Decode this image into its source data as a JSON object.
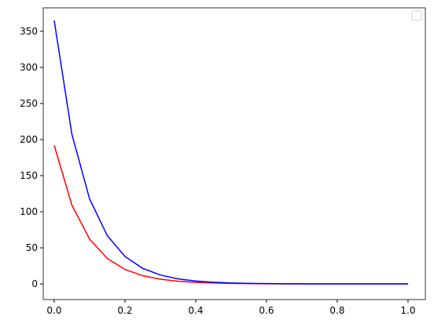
{
  "chart_data": {
    "type": "line",
    "x": [
      0,
      0.05,
      0.1,
      0.15,
      0.2,
      0.25,
      0.3,
      0.35,
      0.4,
      0.45,
      0.5,
      0.55,
      0.6,
      0.65,
      0.7,
      0.75,
      0.8,
      0.85,
      0.9,
      0.95,
      1.0
    ],
    "series": [
      {
        "color": "#ff0000",
        "values": [
          192,
          109.1,
          62.0,
          35.2,
          20.0,
          11.4,
          6.5,
          3.7,
          2.1,
          1.2,
          0.7,
          0.4,
          0.2,
          0.1,
          0.1,
          0.0,
          0.0,
          0.0,
          0.0,
          0.0,
          0.0
        ]
      },
      {
        "color": "#0000ff",
        "values": [
          365,
          207.3,
          117.8,
          66.9,
          38.0,
          21.6,
          12.3,
          7.0,
          4.0,
          2.3,
          1.3,
          0.7,
          0.4,
          0.2,
          0.1,
          0.1,
          0.0,
          0.0,
          0.0,
          0.0,
          0.0
        ]
      }
    ],
    "xlim": [
      -0.031,
      1.049
    ],
    "ylim": [
      -21.7,
      382.6
    ],
    "xticks": [
      {
        "value": 0,
        "label": "0.0"
      },
      0.2,
      0.4,
      0.6,
      0.8,
      {
        "value": 1,
        "label": "1.0"
      }
    ],
    "yticks": [
      0,
      50,
      100,
      150,
      200,
      250,
      300,
      350
    ],
    "legend": "upper right"
  }
}
